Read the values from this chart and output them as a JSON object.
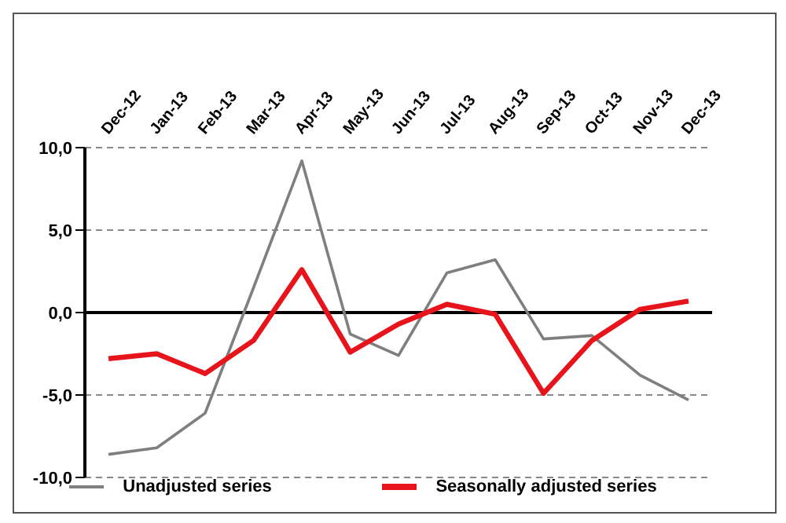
{
  "chart_data": {
    "type": "line",
    "categories": [
      "Dec-12",
      "Jan-13",
      "Feb-13",
      "Mar-13",
      "Apr-13",
      "May-13",
      "Jun-13",
      "Jul-13",
      "Aug-13",
      "Sep-13",
      "Oct-13",
      "Nov-13",
      "Dec-13"
    ],
    "series": [
      {
        "name": "Unadjusted series",
        "color": "#7f7f7f",
        "values": [
          -8.6,
          -8.2,
          -6.1,
          1.5,
          9.2,
          -1.3,
          -2.6,
          2.4,
          3.2,
          -1.6,
          -1.4,
          -3.8,
          -5.3
        ]
      },
      {
        "name": "Seasonally adjusted series",
        "color": "#e8141c",
        "values": [
          -2.8,
          -2.5,
          -3.7,
          -1.7,
          2.6,
          -2.4,
          -0.7,
          0.5,
          -0.1,
          -4.9,
          -1.7,
          0.2,
          0.7
        ]
      }
    ],
    "ylim": [
      -10,
      10
    ],
    "yticks": [
      {
        "value": -10,
        "label": "-10,0"
      },
      {
        "value": -5,
        "label": "-5,0"
      },
      {
        "value": 0,
        "label": "0,0"
      },
      {
        "value": 5,
        "label": "5,0"
      },
      {
        "value": 10,
        "label": "10,0"
      }
    ],
    "grid": "y",
    "legend": "bottom",
    "marker": "none",
    "line_style": "solid"
  }
}
